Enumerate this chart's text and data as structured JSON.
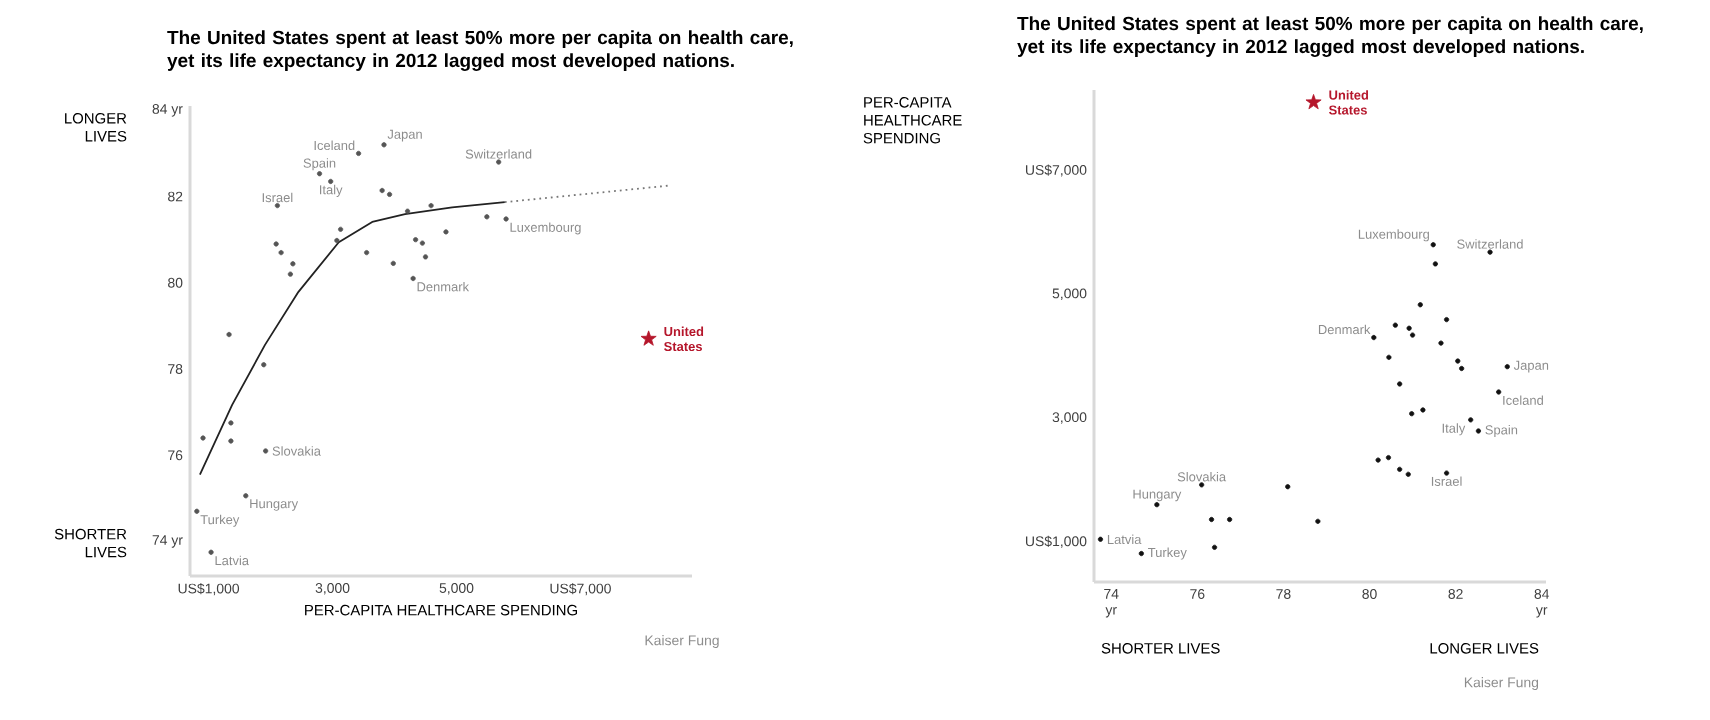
{
  "chart_data": [
    {
      "type": "scatter",
      "title": "The United States spent at least 50% more per capita on health care, yet its life expectancy in 2012 lagged most developed nations.",
      "xlabel": "PER-CAPITA HEALTHCARE SPENDING",
      "xlim": [
        700,
        8800
      ],
      "ylim": [
        73.2,
        84.1
      ],
      "xticks": [
        {
          "value": 1000,
          "label": "US$1,000"
        },
        {
          "value": 3000,
          "label": "3,000"
        },
        {
          "value": 5000,
          "label": "5,000"
        },
        {
          "value": 7000,
          "label": "US$7,000"
        }
      ],
      "yticks": [
        {
          "value": 74,
          "label": "74 yr"
        },
        76,
        78,
        80,
        82,
        {
          "value": 84,
          "label": "84 yr"
        }
      ],
      "series": [
        {
          "marker": "circle",
          "color": "#555555",
          "x": [
            1040,
            810,
            1600,
            1920,
            1360,
            1360,
            910,
            1890,
            1330,
            5800,
            5490,
            5680,
            4830,
            4590,
            4300,
            4500,
            4450,
            4340,
            4210,
            3980,
            3920,
            3800,
            3830,
            3550,
            3420,
            3070,
            3130,
            2970,
            2790,
            2320,
            2360,
            2170,
            2090,
            2110
          ],
          "values": [
            73.75,
            74.7,
            75.06,
            76.1,
            76.33,
            76.75,
            76.4,
            78.1,
            78.8,
            81.48,
            81.53,
            82.8,
            81.18,
            81.79,
            80.1,
            80.6,
            80.92,
            81.0,
            81.66,
            80.45,
            82.05,
            82.14,
            83.2,
            80.7,
            83.0,
            80.98,
            81.24,
            82.35,
            82.53,
            80.2,
            80.44,
            80.7,
            80.9,
            81.79
          ]
        },
        {
          "marker": "star",
          "name": "United States",
          "color": "#b5162b",
          "x": [
            8100
          ],
          "values": [
            78.7
          ]
        },
        {
          "type": "line",
          "marker": "none",
          "line_style": "solid",
          "color": "#222222",
          "x": [
            860,
            1380,
            1910,
            2450,
            3100,
            3640,
            4170,
            4930,
            5780
          ],
          "values": [
            75.55,
            77.17,
            78.56,
            79.79,
            80.94,
            81.41,
            81.59,
            81.75,
            81.87
          ]
        },
        {
          "type": "line",
          "marker": "none",
          "line_style": "dotted",
          "color": "#777777",
          "x": [
            5780,
            8470
          ],
          "values": [
            81.87,
            82.26
          ]
        }
      ],
      "annotations": [
        "LONGER LIVES",
        "SHORTER LIVES",
        "Kaiser Fung",
        {
          "text": "Iceland",
          "x": 3420,
          "y": 83.0
        },
        {
          "text": "Japan",
          "x": 3830,
          "y": 83.2
        },
        {
          "text": "Switzerland",
          "x": 5680,
          "y": 82.8
        },
        {
          "text": "Spain",
          "x": 2790,
          "y": 82.53
        },
        {
          "text": "Italy",
          "x": 2970,
          "y": 82.35
        },
        {
          "text": "Israel",
          "x": 2110,
          "y": 81.79
        },
        {
          "text": "Luxembourg",
          "x": 5800,
          "y": 81.48
        },
        {
          "text": "Denmark",
          "x": 4300,
          "y": 80.1
        },
        {
          "text": "Slovakia",
          "x": 1920,
          "y": 76.1
        },
        {
          "text": "Hungary",
          "x": 1600,
          "y": 75.06
        },
        {
          "text": "Turkey",
          "x": 810,
          "y": 74.7
        },
        {
          "text": "Latvia",
          "x": 1040,
          "y": 73.75
        }
      ]
    },
    {
      "type": "scatter",
      "title": "The United States spent at least 50% more per capita on health care, yet its life expectancy in 2012 lagged most developed nations.",
      "ylabel": "PER-CAPITA HEALTHCARE SPENDING",
      "xlim": [
        73.6,
        84.1
      ],
      "ylim": [
        350,
        8300
      ],
      "xticks": [
        {
          "value": 74,
          "label": "74 yr"
        },
        76,
        78,
        80,
        82,
        {
          "value": 84,
          "label": "84 yr"
        }
      ],
      "yticks": [
        {
          "value": 1000,
          "label": "US$1,000"
        },
        {
          "value": 3000,
          "label": "3,000"
        },
        {
          "value": 5000,
          "label": "5,000"
        },
        {
          "value": 7000,
          "label": "US$7,000"
        }
      ],
      "series": [
        {
          "marker": "circle",
          "color": "#111111",
          "x": [
            73.75,
            74.7,
            75.06,
            76.1,
            76.33,
            76.75,
            76.4,
            78.1,
            78.8,
            81.48,
            81.53,
            82.8,
            81.18,
            81.79,
            80.1,
            80.6,
            80.92,
            81.0,
            81.66,
            80.45,
            82.05,
            82.14,
            83.2,
            80.7,
            83.0,
            80.98,
            81.24,
            82.35,
            82.53,
            80.2,
            80.44,
            80.7,
            80.9,
            81.79
          ],
          "values": [
            1040,
            810,
            1600,
            1920,
            1360,
            1360,
            910,
            1890,
            1330,
            5800,
            5490,
            5680,
            4830,
            4590,
            4300,
            4500,
            4450,
            4340,
            4210,
            3980,
            3920,
            3800,
            3830,
            3550,
            3420,
            3070,
            3130,
            2970,
            2790,
            2320,
            2360,
            2170,
            2090,
            2110
          ]
        },
        {
          "marker": "star",
          "name": "United States",
          "color": "#b5162b",
          "x": [
            78.7
          ],
          "values": [
            8100
          ]
        }
      ],
      "annotations": [
        "SHORTER LIVES",
        "LONGER LIVES",
        "Kaiser Fung",
        {
          "text": "Luxembourg",
          "x": 81.48,
          "y": 5800
        },
        {
          "text": "Switzerland",
          "x": 82.8,
          "y": 5680
        },
        {
          "text": "Denmark",
          "x": 80.1,
          "y": 4300
        },
        {
          "text": "Japan",
          "x": 83.2,
          "y": 3830
        },
        {
          "text": "Iceland",
          "x": 83.0,
          "y": 3420
        },
        {
          "text": "Italy",
          "x": 82.35,
          "y": 2970
        },
        {
          "text": "Spain",
          "x": 82.53,
          "y": 2790
        },
        {
          "text": "Israel",
          "x": 81.79,
          "y": 2110
        },
        {
          "text": "Slovakia",
          "x": 76.1,
          "y": 1920
        },
        {
          "text": "Hungary",
          "x": 75.06,
          "y": 1600
        },
        {
          "text": "Latvia",
          "x": 73.75,
          "y": 1040
        },
        {
          "text": "Turkey",
          "x": 74.7,
          "y": 810
        }
      ]
    }
  ]
}
